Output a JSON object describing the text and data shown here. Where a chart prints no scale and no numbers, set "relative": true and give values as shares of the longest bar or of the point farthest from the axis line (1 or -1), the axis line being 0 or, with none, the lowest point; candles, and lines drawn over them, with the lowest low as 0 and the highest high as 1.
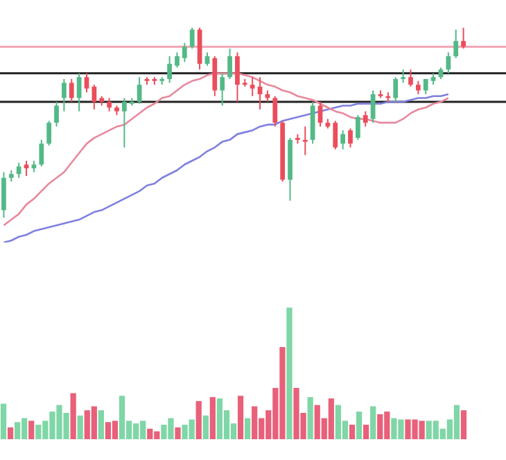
{
  "chart_data": [
    {
      "type": "candlestick",
      "relative": true,
      "tick_labels": false,
      "legend": false,
      "marker": "none",
      "categories": [
        null,
        null,
        null,
        null,
        null,
        null,
        null,
        null,
        null,
        null,
        null,
        null,
        null,
        null,
        null,
        null,
        null,
        null,
        null,
        null,
        null,
        null,
        null,
        null,
        null,
        null,
        null,
        null,
        null,
        null,
        null,
        null,
        null,
        null,
        null,
        null,
        null,
        null,
        null,
        null,
        null,
        null,
        null,
        null,
        null,
        null,
        null,
        null,
        null,
        null,
        null,
        null,
        null,
        null,
        null,
        null,
        null,
        null,
        null,
        null,
        null,
        null
      ],
      "ohlc": [
        [
          0.04,
          0.24,
          0,
          0.21
        ],
        [
          0.21,
          0.25,
          0.19,
          0.23
        ],
        [
          0.23,
          0.29,
          0.21,
          0.27
        ],
        [
          0.28,
          0.3,
          0.22,
          0.26
        ],
        [
          0.26,
          0.3,
          0.24,
          0.28
        ],
        [
          0.28,
          0.41,
          0.27,
          0.39
        ],
        [
          0.39,
          0.51,
          0.38,
          0.5
        ],
        [
          0.5,
          0.61,
          0.48,
          0.59
        ],
        [
          0.63,
          0.73,
          0.56,
          0.71
        ],
        [
          0.71,
          0.73,
          0.61,
          0.63
        ],
        [
          0.63,
          0.76,
          0.56,
          0.74
        ],
        [
          0.74,
          0.76,
          0.66,
          0.68
        ],
        [
          0.69,
          0.7,
          0.57,
          0.61
        ],
        [
          0.63,
          0.64,
          0.59,
          0.61
        ],
        [
          0.61,
          0.63,
          0.56,
          0.58
        ],
        [
          0.58,
          0.59,
          0.54,
          0.56
        ],
        [
          0.56,
          0.63,
          0.37,
          0.61
        ],
        [
          0.6,
          0.63,
          0.59,
          0.61
        ],
        [
          0.61,
          0.74,
          0.6,
          0.7
        ],
        [
          0.73,
          0.74,
          0.7,
          0.72
        ],
        [
          0.73,
          0.74,
          0.7,
          0.72
        ],
        [
          0.72,
          0.74,
          0.7,
          0.73
        ],
        [
          0.73,
          0.85,
          0.71,
          0.81
        ],
        [
          0.8,
          0.87,
          0.79,
          0.85
        ],
        [
          0.84,
          0.92,
          0.82,
          0.9
        ],
        [
          0.9,
          1,
          0.89,
          0.99
        ],
        [
          0.99,
          1,
          0.78,
          0.81
        ],
        [
          0.81,
          0.87,
          0.8,
          0.85
        ],
        [
          0.84,
          0.85,
          0.64,
          0.67
        ],
        [
          0.67,
          0.76,
          0.59,
          0.74
        ],
        [
          0.74,
          0.89,
          0.73,
          0.85
        ],
        [
          0.85,
          0.87,
          0.61,
          0.7
        ],
        [
          0.71,
          0.73,
          0.69,
          0.7
        ],
        [
          0.7,
          0.74,
          0.64,
          0.68
        ],
        [
          0.69,
          0.74,
          0.57,
          0.65
        ],
        [
          0.65,
          0.67,
          0.61,
          0.63
        ],
        [
          0.63,
          0.64,
          0.48,
          0.5
        ],
        [
          0.5,
          0.51,
          0.19,
          0.2
        ],
        [
          0.2,
          0.42,
          0.09,
          0.41
        ],
        [
          0.42,
          0.44,
          0.39,
          0.41
        ],
        [
          0.41,
          0.48,
          0.33,
          0.4
        ],
        [
          0.41,
          0.61,
          0.39,
          0.59
        ],
        [
          0.59,
          0.61,
          0.48,
          0.5
        ],
        [
          0.5,
          0.52,
          0.47,
          0.48
        ],
        [
          0.5,
          0.51,
          0.36,
          0.37
        ],
        [
          0.39,
          0.46,
          0.36,
          0.44
        ],
        [
          0.46,
          0.47,
          0.37,
          0.39
        ],
        [
          0.42,
          0.54,
          0.41,
          0.53
        ],
        [
          0.54,
          0.56,
          0.48,
          0.5
        ],
        [
          0.52,
          0.67,
          0.5,
          0.65
        ],
        [
          0.65,
          0.67,
          0.63,
          0.64
        ],
        [
          0.64,
          0.66,
          0.61,
          0.63
        ],
        [
          0.63,
          0.74,
          0.61,
          0.73
        ],
        [
          0.73,
          0.78,
          0.71,
          0.74
        ],
        [
          0.74,
          0.78,
          0.69,
          0.7
        ],
        [
          0.7,
          0.72,
          0.65,
          0.67
        ],
        [
          0.67,
          0.73,
          0.65,
          0.73
        ],
        [
          0.72,
          0.76,
          0.7,
          0.74
        ],
        [
          0.74,
          0.79,
          0.73,
          0.78
        ],
        [
          0.78,
          0.87,
          0.76,
          0.85
        ],
        [
          0.85,
          0.99,
          0.84,
          0.93
        ],
        [
          0.93,
          1,
          0.89,
          0.9
        ]
      ],
      "colors": [
        "#53b987",
        "#53b987",
        "#53b987",
        "#eb4d5c",
        "#53b987",
        "#53b987",
        "#53b987",
        "#53b987",
        "#53b987",
        "#eb4d5c",
        "#53b987",
        "#eb4d5c",
        "#eb4d5c",
        "#eb4d5c",
        "#eb4d5c",
        "#eb4d5c",
        "#53b987",
        "#53b987",
        "#53b987",
        "#eb4d5c",
        "#eb4d5c",
        "#53b987",
        "#53b987",
        "#53b987",
        "#53b987",
        "#53b987",
        "#eb4d5c",
        "#53b987",
        "#eb4d5c",
        "#53b987",
        "#53b987",
        "#eb4d5c",
        "#eb4d5c",
        "#eb4d5c",
        "#eb4d5c",
        "#eb4d5c",
        "#eb4d5c",
        "#eb4d5c",
        "#53b987",
        "#eb4d5c",
        "#eb4d5c",
        "#53b987",
        "#eb4d5c",
        "#eb4d5c",
        "#eb4d5c",
        "#53b987",
        "#eb4d5c",
        "#53b987",
        "#eb4d5c",
        "#53b987",
        "#eb4d5c",
        "#eb4d5c",
        "#53b987",
        "#53b987",
        "#eb4d5c",
        "#eb4d5c",
        "#53b987",
        "#53b987",
        "#53b987",
        "#53b987",
        "#53b987",
        "#eb4d5c"
      ],
      "series": [
        {
          "type": "line",
          "color": "#e8889c",
          "values": [
            -0.04,
            -0.01,
            0.02,
            0.07,
            0.1,
            0.14,
            0.18,
            0.21,
            0.24,
            0.29,
            0.34,
            0.39,
            0.42,
            0.44,
            0.46,
            0.48,
            0.49,
            0.52,
            0.55,
            0.58,
            0.6,
            0.63,
            0.64,
            0.67,
            0.7,
            0.72,
            0.73,
            0.75,
            0.76,
            0.76,
            0.76,
            0.76,
            0.75,
            0.74,
            0.72,
            0.7,
            0.69,
            0.67,
            0.66,
            0.64,
            0.63,
            0.62,
            0.6,
            0.58,
            0.56,
            0.55,
            0.53,
            0.52,
            0.52,
            0.51,
            0.5,
            0.5,
            0.5,
            0.52,
            0.55,
            0.57,
            0.58,
            0.6,
            0.61,
            0.63,
            null,
            null
          ]
        },
        {
          "type": "line",
          "color": "#7f7fe0",
          "values": [
            -0.13,
            -0.12,
            -0.1,
            -0.09,
            -0.07,
            -0.06,
            -0.05,
            -0.04,
            -0.03,
            -0.02,
            -0.01,
            0.01,
            0.03,
            0.04,
            0.06,
            0.08,
            0.1,
            0.12,
            0.14,
            0.17,
            0.18,
            0.21,
            0.23,
            0.25,
            0.28,
            0.3,
            0.32,
            0.35,
            0.37,
            0.4,
            0.41,
            0.44,
            0.45,
            0.46,
            0.48,
            0.49,
            0.49,
            0.51,
            0.52,
            0.53,
            0.54,
            0.55,
            0.56,
            0.57,
            0.58,
            0.59,
            0.59,
            0.6,
            0.6,
            0.6,
            0.6,
            0.61,
            0.61,
            0.61,
            0.62,
            0.63,
            0.63,
            0.64,
            0.64,
            0.65,
            null,
            null
          ]
        }
      ],
      "ref_lines": [
        {
          "axis": "y",
          "value": 0.9,
          "color": "#f2a7b6"
        },
        {
          "axis": "y",
          "value": 0.76,
          "color": "#222222"
        },
        {
          "axis": "y",
          "value": 0.61,
          "color": "#222222"
        }
      ]
    },
    {
      "type": "bar",
      "relative": true,
      "tick_labels": false,
      "legend": false,
      "categories": [
        null,
        null,
        null,
        null,
        null,
        null,
        null,
        null,
        null,
        null,
        null,
        null,
        null,
        null,
        null,
        null,
        null,
        null,
        null,
        null,
        null,
        null,
        null,
        null,
        null,
        null,
        null,
        null,
        null,
        null,
        null,
        null,
        null,
        null,
        null,
        null,
        null,
        null,
        null,
        null,
        null,
        null,
        null,
        null,
        null,
        null,
        null,
        null,
        null,
        null,
        null,
        null,
        null,
        null,
        null,
        null,
        null,
        null,
        null,
        null,
        null,
        null,
        null,
        null,
        null,
        null,
        null
      ],
      "values": [
        0.27,
        0.09,
        0.13,
        0.16,
        0.14,
        0.11,
        0.14,
        0.21,
        0.26,
        0.2,
        0.35,
        0.18,
        0.22,
        0.25,
        0.22,
        0.13,
        0.14,
        0.33,
        0.14,
        0.12,
        0.14,
        0.08,
        0.06,
        0.11,
        0.16,
        0.09,
        0.11,
        0.15,
        0.29,
        0.18,
        0.32,
        0.31,
        0.22,
        0.12,
        0.33,
        0.16,
        0.25,
        0.16,
        0.22,
        0.39,
        0.7,
        1,
        0.39,
        0.2,
        0.32,
        0.26,
        0.16,
        0.31,
        0.26,
        0.14,
        0.11,
        0.21,
        0.11,
        0.25,
        0.19,
        0.21,
        0.16,
        0.15,
        0.15,
        0.15,
        0.14,
        0.14,
        0.14,
        0.08,
        0.15,
        0.26,
        0.22
      ],
      "colors": [
        "#7fd6a6",
        "#e8607a",
        "#7fd6a6",
        "#7fd6a6",
        "#e8607a",
        "#7fd6a6",
        "#7fd6a6",
        "#7fd6a6",
        "#7fd6a6",
        "#7fd6a6",
        "#e8607a",
        "#7fd6a6",
        "#e8607a",
        "#e8607a",
        "#7fd6a6",
        "#e8607a",
        "#e8607a",
        "#7fd6a6",
        "#7fd6a6",
        "#7fd6a6",
        "#7fd6a6",
        "#e8607a",
        "#e8607a",
        "#7fd6a6",
        "#7fd6a6",
        "#e8607a",
        "#7fd6a6",
        "#7fd6a6",
        "#e8607a",
        "#7fd6a6",
        "#e8607a",
        "#7fd6a6",
        "#7fd6a6",
        "#7fd6a6",
        "#e8607a",
        "#7fd6a6",
        "#e8607a",
        "#e8607a",
        "#e8607a",
        "#e8607a",
        "#e8607a",
        "#7fd6a6",
        "#e8607a",
        "#e8607a",
        "#7fd6a6",
        "#e8607a",
        "#e8607a",
        "#e8607a",
        "#7fd6a6",
        "#7fd6a6",
        "#e8607a",
        "#7fd6a6",
        "#e8607a",
        "#7fd6a6",
        "#e8607a",
        "#e8607a",
        "#7fd6a6",
        "#7fd6a6",
        "#e8607a",
        "#e8607a",
        "#e8607a",
        "#7fd6a6",
        "#7fd6a6",
        "#7fd6a6",
        "#7fd6a6",
        "#7fd6a6",
        "#e8607a"
      ]
    }
  ]
}
